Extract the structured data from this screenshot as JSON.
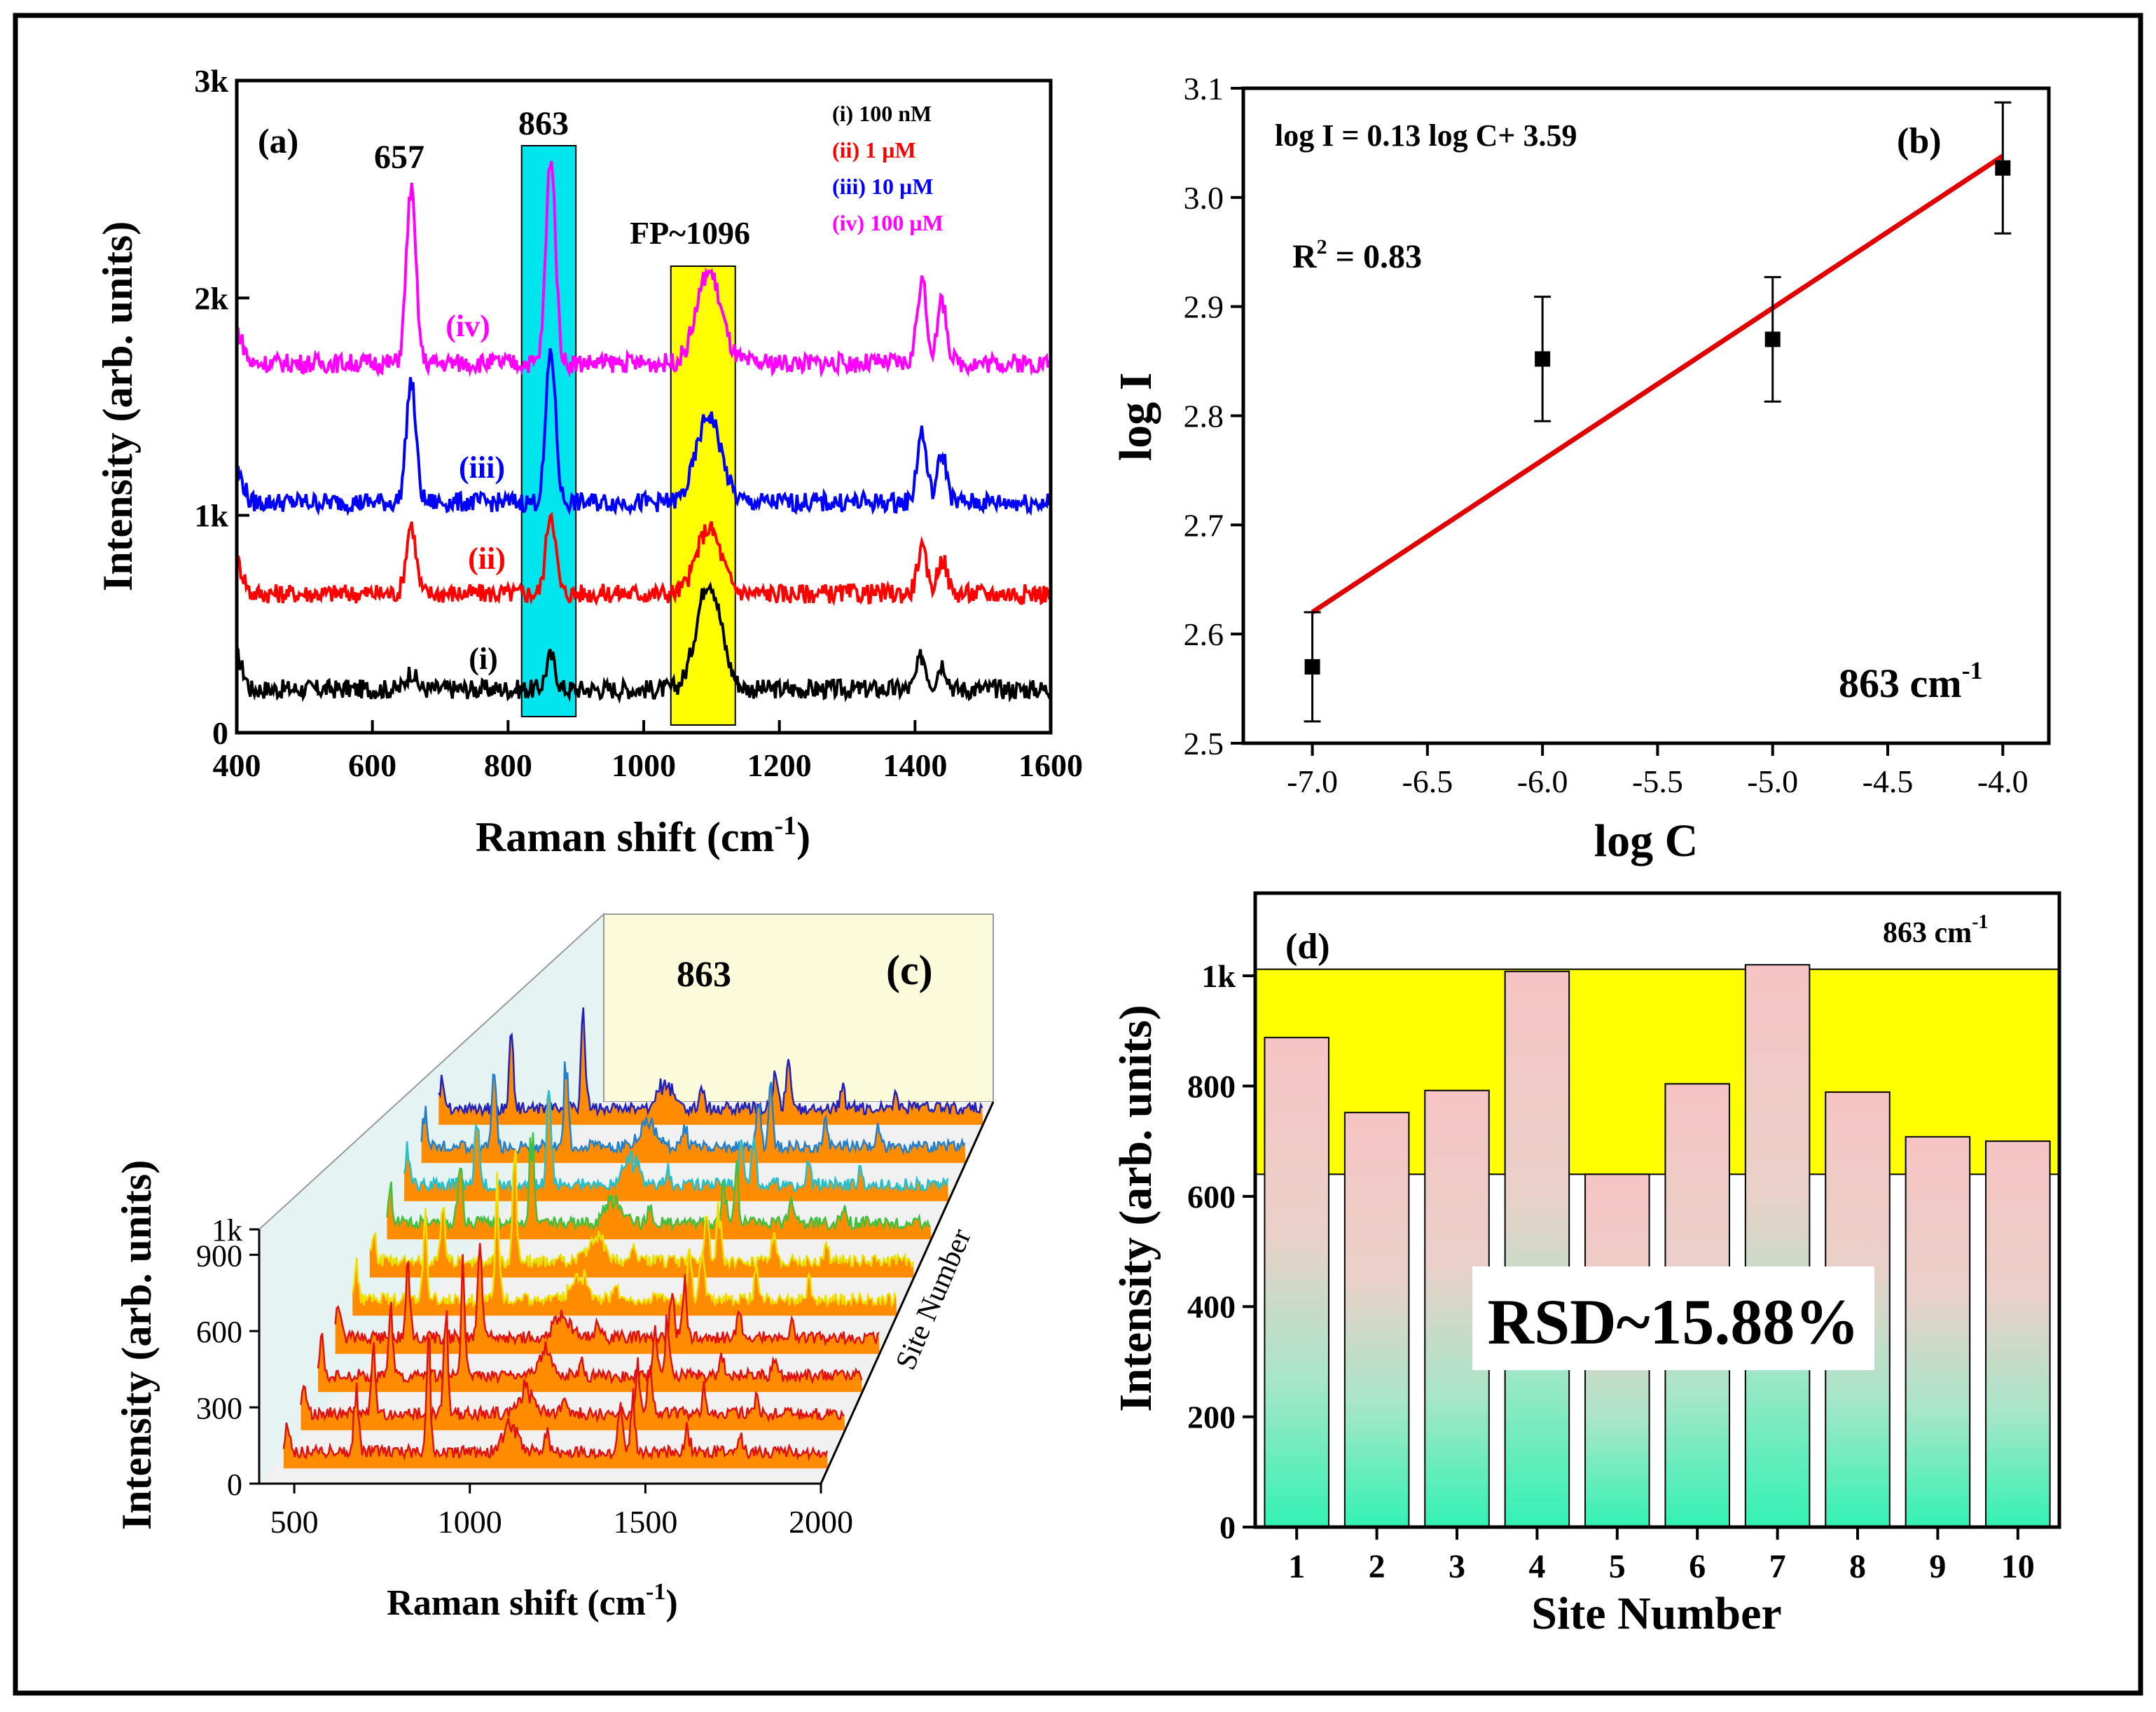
{
  "chart_data": [
    {
      "panel": "(a)",
      "type": "line",
      "xlabel": "Raman shift (cm",
      "xlabel_sup": "-1",
      "xlabel_tail": ")",
      "ylabel": "Intensity (arb. units)",
      "xlim": [
        400,
        1600
      ],
      "ylim": [
        0,
        3000
      ],
      "xticks": [
        400,
        600,
        800,
        1000,
        1200,
        1400,
        1600
      ],
      "yticks": [
        {
          "v": 0,
          "label": "0"
        },
        {
          "v": 1000,
          "label": "1k"
        },
        {
          "v": 2000,
          "label": "2k"
        },
        {
          "v": 3000,
          "label": "3k"
        }
      ],
      "highlight_bands": [
        {
          "from": 820,
          "to": 900,
          "color": "#00e5ee",
          "label": "863"
        },
        {
          "from": 1040,
          "to": 1135,
          "color": "#ffff00",
          "label": "FP~1096"
        }
      ],
      "peak_label": "657",
      "peaks": [
        657,
        863,
        1096,
        1410,
        1440
      ],
      "series": [
        {
          "id": "i",
          "label": "(i)",
          "legend": "(i) 100 nM",
          "color": "#000000",
          "baseline": 200,
          "heights": [
            80,
            150,
            500,
            150,
            120
          ]
        },
        {
          "id": "ii",
          "label": "(ii)",
          "legend": "(ii) 1 µM",
          "color": "#ff0000",
          "baseline": 640,
          "heights": [
            320,
            380,
            300,
            200,
            160
          ]
        },
        {
          "id": "iii",
          "label": "(iii)",
          "legend": "(iii) 10 µM",
          "color": "#0000ff",
          "baseline": 1060,
          "heights": [
            560,
            700,
            400,
            320,
            220
          ]
        },
        {
          "id": "iv",
          "label": "(iv)",
          "legend": "(iv) 100 µM",
          "color": "#ff00ff",
          "baseline": 1700,
          "heights": [
            800,
            950,
            420,
            380,
            280
          ]
        }
      ]
    },
    {
      "panel": "(b)",
      "type": "scatter",
      "xlabel": "log C",
      "ylabel": "log I",
      "xlim": [
        -7.3,
        -3.8
      ],
      "ylim": [
        2.5,
        3.1
      ],
      "xticks": [
        {
          "v": -7.0,
          "label": "-7.0"
        },
        {
          "v": -6.5,
          "label": "-6.5"
        },
        {
          "v": -6.0,
          "label": "-6.0"
        },
        {
          "v": -5.5,
          "label": "-5.5"
        },
        {
          "v": -5.0,
          "label": "-5.0"
        },
        {
          "v": -4.5,
          "label": "-4.5"
        },
        {
          "v": -4.0,
          "label": "-4.0"
        }
      ],
      "yticks": [
        {
          "v": 2.5,
          "label": "2.5"
        },
        {
          "v": 2.6,
          "label": "2.6"
        },
        {
          "v": 2.7,
          "label": "2.7"
        },
        {
          "v": 2.8,
          "label": "2.8"
        },
        {
          "v": 2.9,
          "label": "2.9"
        },
        {
          "v": 3.0,
          "label": "3.0"
        },
        {
          "v": 3.1,
          "label": "3.1"
        }
      ],
      "points": [
        {
          "x": -7.0,
          "y": 2.57,
          "err": 0.05
        },
        {
          "x": -6.0,
          "y": 2.852,
          "err": 0.057
        },
        {
          "x": -5.0,
          "y": 2.87,
          "err": 0.057
        },
        {
          "x": -4.0,
          "y": 3.027,
          "err": 0.06
        }
      ],
      "fit": {
        "x0": -7.0,
        "y0": 2.62,
        "x1": -4.0,
        "y1": 3.038,
        "color": "#e00000"
      },
      "equation": "log I = 0.13 log C+ 3.59",
      "r2_prefix": "R",
      "r2_sup": "2",
      "r2_value": " = 0.83",
      "band_label": "863 cm",
      "band_sup": "-1"
    },
    {
      "panel": "(c)",
      "type": "line",
      "subtype": "waterfall-3d",
      "xlabel": "Raman shift (cm",
      "xlabel_sup": "-1",
      "xlabel_tail": ")",
      "ylabel": "Intensity (arb. units)",
      "depth_label": "Site Number",
      "peak_label": "863",
      "xlim": [
        400,
        2000
      ],
      "ylim": [
        0,
        1000
      ],
      "xticks": [
        500,
        1000,
        1500,
        2000
      ],
      "yticks": [
        {
          "v": 0,
          "label": "0"
        },
        {
          "v": 300,
          "label": "300"
        },
        {
          "v": 600,
          "label": "600"
        },
        {
          "v": 900,
          "label": "900"
        },
        {
          "v": 1000,
          "label": "1k"
        }
      ],
      "sites": 10,
      "line_colors": [
        "#e01010",
        "#e01010",
        "#e01010",
        "#e01010",
        "#f0e000",
        "#e8e000",
        "#40c040",
        "#20c0d0",
        "#2080d0",
        "#2020c0"
      ],
      "fill_color": "#ff8c00"
    },
    {
      "panel": "(d)",
      "type": "bar",
      "xlabel": "Site Number",
      "ylabel": "Intensity (arb. units)",
      "categories": [
        "1",
        "2",
        "3",
        "4",
        "5",
        "6",
        "7",
        "8",
        "9",
        "10"
      ],
      "values": [
        888,
        752,
        792,
        1008,
        640,
        804,
        1020,
        789,
        708,
        700
      ],
      "ylim": [
        0,
        1150
      ],
      "yticks": [
        {
          "v": 0,
          "label": "0"
        },
        {
          "v": 200,
          "label": "200"
        },
        {
          "v": 400,
          "label": "400"
        },
        {
          "v": 600,
          "label": "600"
        },
        {
          "v": 800,
          "label": "800"
        },
        {
          "v": 1000,
          "label": "1k"
        }
      ],
      "band": {
        "from": 640,
        "to": 1012,
        "color": "#ffff00"
      },
      "annotation": "RSD~15.88%",
      "band_label": "863 cm",
      "band_sup": "-1"
    }
  ]
}
